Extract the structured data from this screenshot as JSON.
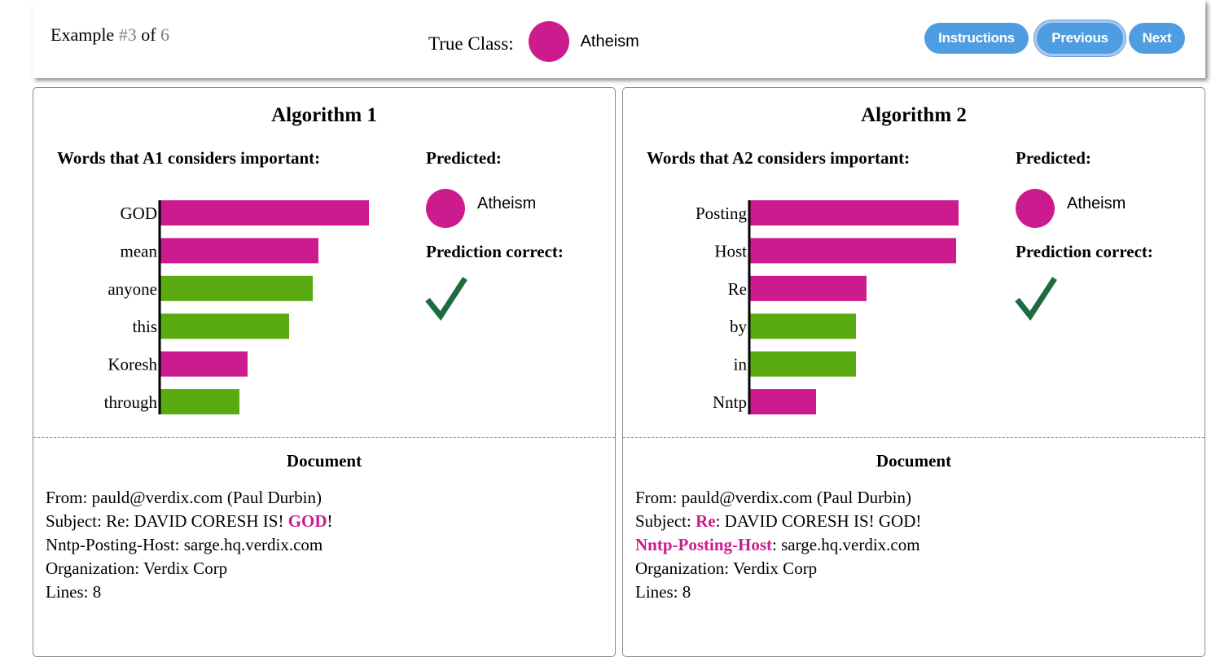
{
  "header": {
    "example_prefix": "Example ",
    "example_index": "#3",
    "example_of": " of ",
    "example_total": "6",
    "true_class_label": "True Class:",
    "true_class_name": "Atheism",
    "true_class_color": "#cc1b8e",
    "buttons": {
      "instructions": "Instructions",
      "previous": "Previous",
      "next": "Next",
      "color": "#4e9de0"
    }
  },
  "colors": {
    "atheism": "#cc1b8e",
    "christian": "#5aab11",
    "highlight": "#cc1b8e",
    "check": "#1e6b3f"
  },
  "algorithms": [
    {
      "title": "Algorithm 1",
      "words_label": "Words that A1 considers important:",
      "predicted_label": "Predicted:",
      "predicted_class": "Atheism",
      "correct_label": "Prediction correct:",
      "correct": true,
      "chart_data": {
        "type": "bar",
        "orientation": "horizontal",
        "categories": [
          "GOD",
          "mean",
          "anyone",
          "this",
          "Koresh",
          "through"
        ],
        "values": [
          1.0,
          0.76,
          0.73,
          0.62,
          0.42,
          0.38
        ],
        "bar_classes": [
          "atheism",
          "atheism",
          "christian",
          "christian",
          "atheism",
          "christian"
        ]
      },
      "document": {
        "title": "Document",
        "lines": [
          [
            {
              "t": "From: pauld@verdix.com (Paul Durbin)"
            }
          ],
          [
            {
              "t": "Subject: Re: DAVID CORESH IS! "
            },
            {
              "t": "GOD",
              "hl": true
            },
            {
              "t": "!"
            }
          ],
          [
            {
              "t": "Nntp-Posting-Host: sarge.hq.verdix.com"
            }
          ],
          [
            {
              "t": "Organization: Verdix Corp"
            }
          ],
          [
            {
              "t": "Lines: 8"
            }
          ]
        ]
      }
    },
    {
      "title": "Algorithm 2",
      "words_label": "Words that A2 considers important:",
      "predicted_label": "Predicted:",
      "predicted_class": "Atheism",
      "correct_label": "Prediction correct:",
      "correct": true,
      "chart_data": {
        "type": "bar",
        "orientation": "horizontal",
        "categories": [
          "Posting",
          "Host",
          "Re",
          "by",
          "in",
          "Nntp"
        ],
        "values": [
          1.0,
          0.99,
          0.56,
          0.51,
          0.51,
          0.32
        ],
        "bar_classes": [
          "atheism",
          "atheism",
          "atheism",
          "christian",
          "christian",
          "atheism"
        ]
      },
      "document": {
        "title": "Document",
        "lines": [
          [
            {
              "t": "From: pauld@verdix.com (Paul Durbin)"
            }
          ],
          [
            {
              "t": "Subject: "
            },
            {
              "t": "Re",
              "hl": true
            },
            {
              "t": ": DAVID CORESH IS! GOD!"
            }
          ],
          [
            {
              "t": "Nntp-Posting-Host",
              "hl": true
            },
            {
              "t": ": sarge.hq.verdix.com"
            }
          ],
          [
            {
              "t": "Organization: Verdix Corp"
            }
          ],
          [
            {
              "t": "Lines: 8"
            }
          ]
        ]
      }
    }
  ]
}
